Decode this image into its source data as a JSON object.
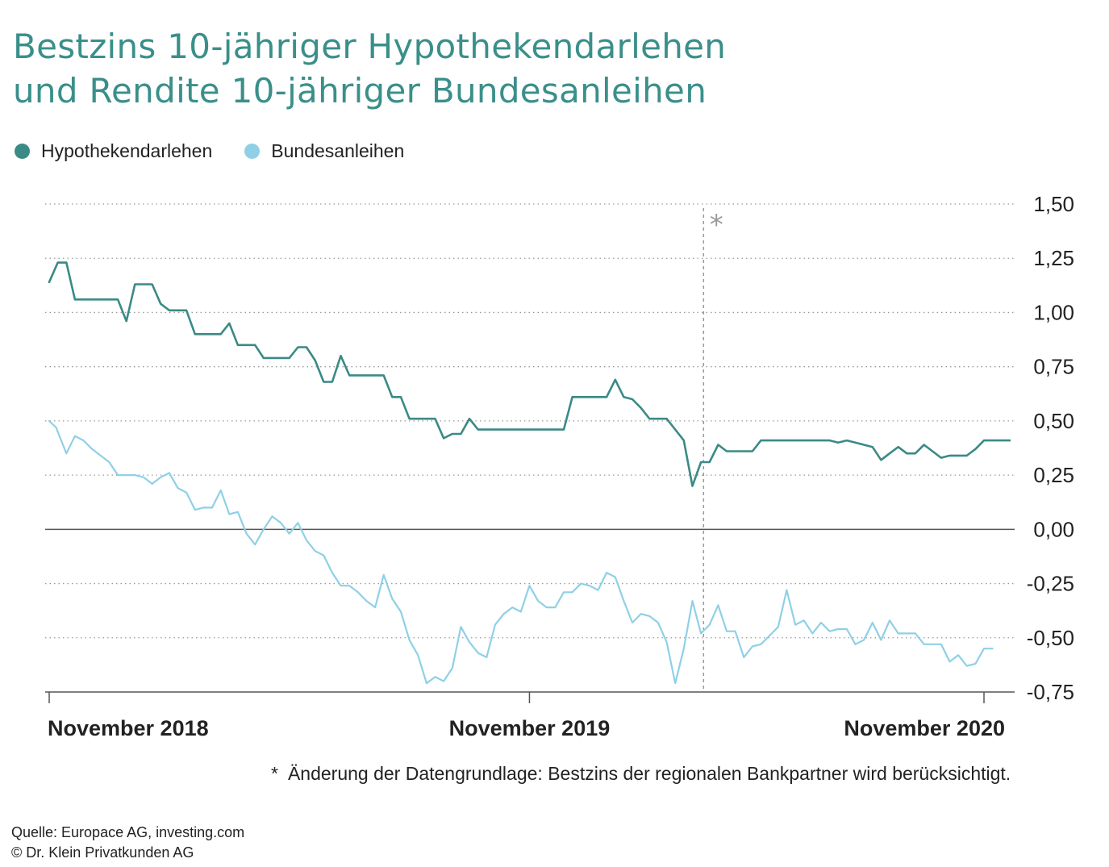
{
  "title": {
    "line1": "Bestzins 10-jähriger Hypothekendarlehen",
    "line2": "und Rendite 10-jähriger Bundesanleihen"
  },
  "colors": {
    "title": "#3a8f8a",
    "hypothek": "#3a8a86",
    "bund": "#8fd0e6",
    "grid": "#9a9a9a",
    "axis": "#555555",
    "marker": "#9a9a9a"
  },
  "legend": {
    "hypothek": "Hypothekendarlehen",
    "bund": "Bundesanleihen"
  },
  "footnote": {
    "star": "*",
    "text": "Änderung der Datengrundlage: Bestzins der regionalen Bankpartner wird berücksichtigt."
  },
  "source": {
    "line1": "Quelle: Europace AG, investing.com",
    "line2": "© Dr. Klein Privatkunden AG"
  },
  "chart_data": {
    "type": "line",
    "title": "Bestzins 10-jähriger Hypothekendarlehen und Rendite 10-jähriger Bundesanleihen",
    "xlabel": "",
    "ylabel": "",
    "x_range": [
      0,
      109
    ],
    "ylim": [
      -0.75,
      1.5
    ],
    "y_ticks": [
      1.5,
      1.25,
      1.0,
      0.75,
      0.5,
      0.25,
      0.0,
      -0.25,
      -0.5,
      -0.75
    ],
    "y_tick_labels": [
      "1,50",
      "1,25",
      "1,00",
      "0,75",
      "0,50",
      "0,25",
      "0,00",
      "-0,25",
      "-0,50",
      "-0,75"
    ],
    "x_ticks": [
      {
        "x": 0,
        "label": "November 2018"
      },
      {
        "x": 56,
        "label": "November 2019"
      },
      {
        "x": 109,
        "label": "November 2020"
      }
    ],
    "marker": {
      "x": 76.3,
      "label": "*"
    },
    "series": [
      {
        "name": "Hypothekendarlehen",
        "color": "#3a8a86",
        "points": [
          [
            0,
            1.14
          ],
          [
            1,
            1.23
          ],
          [
            2,
            1.23
          ],
          [
            3,
            1.06
          ],
          [
            4,
            1.06
          ],
          [
            5,
            1.06
          ],
          [
            6,
            1.06
          ],
          [
            7,
            1.06
          ],
          [
            8,
            1.06
          ],
          [
            9,
            0.96
          ],
          [
            10,
            1.13
          ],
          [
            11,
            1.13
          ],
          [
            12,
            1.13
          ],
          [
            13,
            1.04
          ],
          [
            14,
            1.01
          ],
          [
            15,
            1.01
          ],
          [
            16,
            1.01
          ],
          [
            17,
            0.9
          ],
          [
            18,
            0.9
          ],
          [
            19,
            0.9
          ],
          [
            20,
            0.9
          ],
          [
            21,
            0.95
          ],
          [
            22,
            0.85
          ],
          [
            23,
            0.85
          ],
          [
            24,
            0.85
          ],
          [
            25,
            0.79
          ],
          [
            26,
            0.79
          ],
          [
            27,
            0.79
          ],
          [
            28,
            0.79
          ],
          [
            29,
            0.84
          ],
          [
            30,
            0.84
          ],
          [
            31,
            0.78
          ],
          [
            32,
            0.68
          ],
          [
            33,
            0.68
          ],
          [
            34,
            0.8
          ],
          [
            35,
            0.71
          ],
          [
            36,
            0.71
          ],
          [
            37,
            0.71
          ],
          [
            38,
            0.71
          ],
          [
            39,
            0.71
          ],
          [
            40,
            0.61
          ],
          [
            41,
            0.61
          ],
          [
            42,
            0.51
          ],
          [
            43,
            0.51
          ],
          [
            44,
            0.51
          ],
          [
            45,
            0.51
          ],
          [
            46,
            0.42
          ],
          [
            47,
            0.44
          ],
          [
            48,
            0.44
          ],
          [
            49,
            0.51
          ],
          [
            50,
            0.46
          ],
          [
            51,
            0.46
          ],
          [
            52,
            0.46
          ],
          [
            53,
            0.46
          ],
          [
            54,
            0.46
          ],
          [
            55,
            0.46
          ],
          [
            56,
            0.46
          ],
          [
            57,
            0.46
          ],
          [
            58,
            0.46
          ],
          [
            59,
            0.46
          ],
          [
            60,
            0.46
          ],
          [
            61,
            0.61
          ],
          [
            62,
            0.61
          ],
          [
            63,
            0.61
          ],
          [
            64,
            0.61
          ],
          [
            65,
            0.61
          ],
          [
            66,
            0.69
          ],
          [
            67,
            0.61
          ],
          [
            68,
            0.6
          ],
          [
            69,
            0.56
          ],
          [
            70,
            0.51
          ],
          [
            71,
            0.51
          ],
          [
            72,
            0.51
          ],
          [
            73,
            0.46
          ],
          [
            74,
            0.41
          ],
          [
            75,
            0.2
          ],
          [
            76,
            0.31
          ],
          [
            77,
            0.31
          ],
          [
            78,
            0.39
          ],
          [
            79,
            0.36
          ],
          [
            80,
            0.36
          ],
          [
            81,
            0.36
          ],
          [
            82,
            0.36
          ],
          [
            83,
            0.41
          ],
          [
            84,
            0.41
          ],
          [
            85,
            0.41
          ],
          [
            86,
            0.41
          ],
          [
            87,
            0.41
          ],
          [
            88,
            0.41
          ],
          [
            89,
            0.41
          ],
          [
            90,
            0.41
          ],
          [
            91,
            0.41
          ],
          [
            92,
            0.4
          ],
          [
            93,
            0.41
          ],
          [
            94,
            0.4
          ],
          [
            95,
            0.39
          ],
          [
            96,
            0.38
          ],
          [
            97,
            0.32
          ],
          [
            98,
            0.35
          ],
          [
            99,
            0.38
          ],
          [
            100,
            0.35
          ],
          [
            101,
            0.35
          ],
          [
            102,
            0.39
          ],
          [
            103,
            0.36
          ],
          [
            104,
            0.33
          ],
          [
            105,
            0.34
          ],
          [
            106,
            0.34
          ],
          [
            107,
            0.34
          ],
          [
            108,
            0.37
          ],
          [
            109,
            0.41
          ],
          [
            110,
            0.41
          ],
          [
            111,
            0.41
          ],
          [
            112,
            0.41
          ]
        ]
      },
      {
        "name": "Bundesanleihen",
        "color": "#8fd0e6",
        "points": [
          [
            0,
            0.5
          ],
          [
            0.8,
            0.47
          ],
          [
            2,
            0.35
          ],
          [
            3,
            0.43
          ],
          [
            4,
            0.41
          ],
          [
            5,
            0.37
          ],
          [
            6,
            0.34
          ],
          [
            7,
            0.31
          ],
          [
            8,
            0.25
          ],
          [
            9,
            0.25
          ],
          [
            10,
            0.25
          ],
          [
            11,
            0.24
          ],
          [
            12,
            0.21
          ],
          [
            13,
            0.24
          ],
          [
            14,
            0.26
          ],
          [
            15,
            0.19
          ],
          [
            16,
            0.17
          ],
          [
            17,
            0.09
          ],
          [
            18,
            0.1
          ],
          [
            19,
            0.1
          ],
          [
            20,
            0.18
          ],
          [
            21,
            0.07
          ],
          [
            22,
            0.08
          ],
          [
            23,
            -0.02
          ],
          [
            24,
            -0.07
          ],
          [
            25,
            0.0
          ],
          [
            26,
            0.06
          ],
          [
            27,
            0.03
          ],
          [
            28,
            -0.02
          ],
          [
            29,
            0.03
          ],
          [
            30,
            -0.05
          ],
          [
            31,
            -0.1
          ],
          [
            32,
            -0.12
          ],
          [
            33,
            -0.2
          ],
          [
            34,
            -0.26
          ],
          [
            35,
            -0.26
          ],
          [
            36,
            -0.29
          ],
          [
            37,
            -0.33
          ],
          [
            38,
            -0.36
          ],
          [
            39,
            -0.21
          ],
          [
            40,
            -0.32
          ],
          [
            41,
            -0.38
          ],
          [
            42,
            -0.51
          ],
          [
            43,
            -0.58
          ],
          [
            44,
            -0.71
          ],
          [
            45,
            -0.68
          ],
          [
            46,
            -0.7
          ],
          [
            47,
            -0.64
          ],
          [
            48,
            -0.45
          ],
          [
            49,
            -0.52
          ],
          [
            50,
            -0.57
          ],
          [
            51,
            -0.59
          ],
          [
            52,
            -0.44
          ],
          [
            53,
            -0.39
          ],
          [
            54,
            -0.36
          ],
          [
            55,
            -0.38
          ],
          [
            56,
            -0.26
          ],
          [
            57,
            -0.33
          ],
          [
            58,
            -0.36
          ],
          [
            59,
            -0.36
          ],
          [
            60,
            -0.29
          ],
          [
            61,
            -0.29
          ],
          [
            62,
            -0.25
          ],
          [
            63,
            -0.26
          ],
          [
            64,
            -0.28
          ],
          [
            65,
            -0.2
          ],
          [
            66,
            -0.22
          ],
          [
            67,
            -0.33
          ],
          [
            68,
            -0.43
          ],
          [
            69,
            -0.39
          ],
          [
            70,
            -0.4
          ],
          [
            71,
            -0.43
          ],
          [
            72,
            -0.52
          ],
          [
            73,
            -0.71
          ],
          [
            74,
            -0.55
          ],
          [
            75,
            -0.33
          ],
          [
            76,
            -0.48
          ],
          [
            77,
            -0.44
          ],
          [
            78,
            -0.35
          ],
          [
            79,
            -0.47
          ],
          [
            80,
            -0.47
          ],
          [
            81,
            -0.59
          ],
          [
            82,
            -0.54
          ],
          [
            83,
            -0.53
          ],
          [
            84,
            -0.49
          ],
          [
            85,
            -0.45
          ],
          [
            86,
            -0.28
          ],
          [
            87,
            -0.44
          ],
          [
            88,
            -0.42
          ],
          [
            89,
            -0.48
          ],
          [
            90,
            -0.43
          ],
          [
            91,
            -0.47
          ],
          [
            92,
            -0.46
          ],
          [
            93,
            -0.46
          ],
          [
            94,
            -0.53
          ],
          [
            95,
            -0.51
          ],
          [
            96,
            -0.43
          ],
          [
            97,
            -0.51
          ],
          [
            98,
            -0.42
          ],
          [
            99,
            -0.48
          ],
          [
            100,
            -0.48
          ],
          [
            101,
            -0.48
          ],
          [
            102,
            -0.53
          ],
          [
            103,
            -0.53
          ],
          [
            104,
            -0.53
          ],
          [
            105,
            -0.61
          ],
          [
            106,
            -0.58
          ],
          [
            107,
            -0.63
          ],
          [
            108,
            -0.62
          ],
          [
            109,
            -0.55
          ],
          [
            110,
            -0.55
          ]
        ]
      }
    ]
  }
}
